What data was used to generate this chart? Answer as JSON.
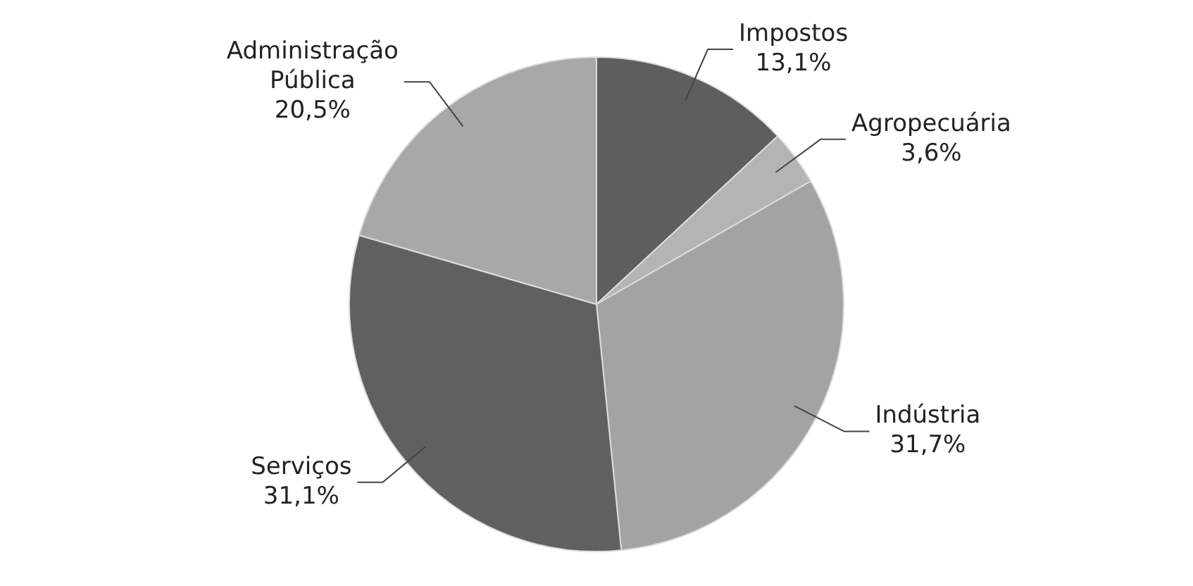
{
  "chart_data": {
    "type": "pie",
    "categories": [
      "Impostos",
      "Agropecuária",
      "Indústria",
      "Serviços",
      "Administração Pública"
    ],
    "values": [
      13.1,
      3.6,
      31.7,
      31.1,
      20.5
    ],
    "colors": [
      "#5e5e5e",
      "#b4b4b4",
      "#a3a3a3",
      "#606060",
      "#a8a8a8"
    ],
    "value_labels": [
      "13,1%",
      "3,6%",
      "31,7%",
      "31,1%",
      "20,5%"
    ],
    "legend": false
  }
}
